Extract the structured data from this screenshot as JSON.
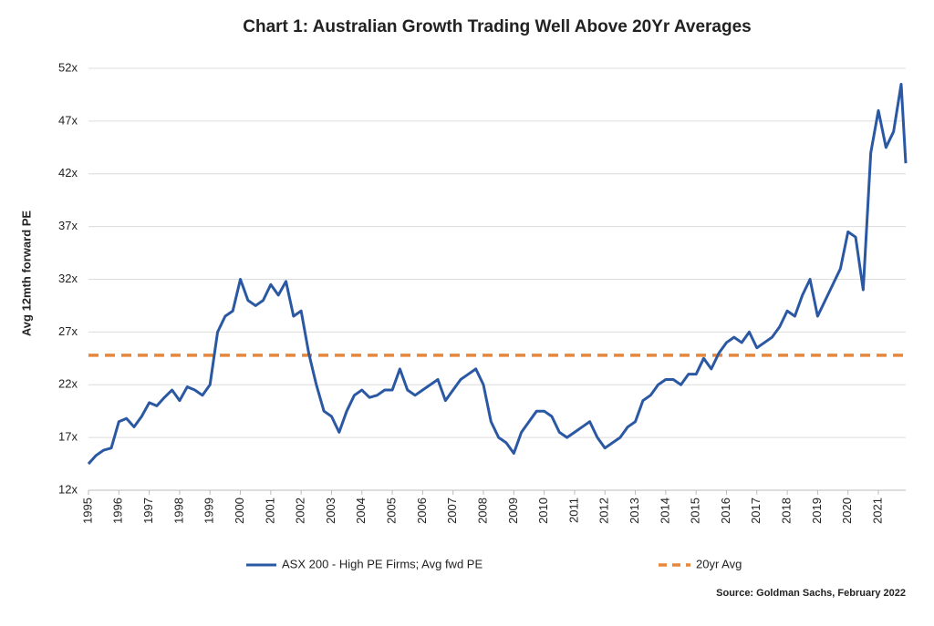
{
  "chart_data": {
    "type": "line",
    "title": "Chart 1: Australian Growth Trading Well Above 20Yr Averages",
    "y_label": "Avg 12mth forward PE",
    "source": "Source: Goldman Sachs, February 2022",
    "x": [
      1995,
      1995.25,
      1995.5,
      1995.75,
      1996,
      1996.25,
      1996.5,
      1996.75,
      1997,
      1997.25,
      1997.5,
      1997.75,
      1998,
      1998.25,
      1998.5,
      1998.75,
      1999,
      1999.25,
      1999.5,
      1999.75,
      2000,
      2000.25,
      2000.5,
      2000.75,
      2001,
      2001.25,
      2001.5,
      2001.75,
      2002,
      2002.25,
      2002.5,
      2002.75,
      2003,
      2003.25,
      2003.5,
      2003.75,
      2004,
      2004.25,
      2004.5,
      2004.75,
      2005,
      2005.25,
      2005.5,
      2005.75,
      2006,
      2006.25,
      2006.5,
      2006.75,
      2007,
      2007.25,
      2007.5,
      2007.75,
      2008,
      2008.25,
      2008.5,
      2008.75,
      2009,
      2009.25,
      2009.5,
      2009.75,
      2010,
      2010.25,
      2010.5,
      2010.75,
      2011,
      2011.25,
      2011.5,
      2011.75,
      2012,
      2012.25,
      2012.5,
      2012.75,
      2013,
      2013.25,
      2013.5,
      2013.75,
      2014,
      2014.25,
      2014.5,
      2014.75,
      2015,
      2015.25,
      2015.5,
      2015.75,
      2016,
      2016.25,
      2016.5,
      2016.75,
      2017,
      2017.25,
      2017.5,
      2017.75,
      2018,
      2018.25,
      2018.5,
      2018.75,
      2019,
      2019.25,
      2019.5,
      2019.75,
      2020,
      2020.25,
      2020.5,
      2020.75,
      2021,
      2021.25,
      2021.5,
      2021.75,
      2021.9
    ],
    "series": [
      {
        "name": "ASX 200 - High PE Firms; Avg fwd PE",
        "color": "#2b58a3",
        "values": [
          14.5,
          15.3,
          15.8,
          16.0,
          18.5,
          18.8,
          18.0,
          19.0,
          20.3,
          20.0,
          20.8,
          21.5,
          20.5,
          21.8,
          21.5,
          21.0,
          22.0,
          27.0,
          28.5,
          29.0,
          32.0,
          30.0,
          29.5,
          30.0,
          31.5,
          30.5,
          31.8,
          28.5,
          29.0,
          25.0,
          22.0,
          19.5,
          19.0,
          17.5,
          19.5,
          21.0,
          21.5,
          20.8,
          21.0,
          21.5,
          21.5,
          23.5,
          21.5,
          21.0,
          21.5,
          22.0,
          22.5,
          20.5,
          21.5,
          22.5,
          23.0,
          23.5,
          22.0,
          18.5,
          17.0,
          16.5,
          15.5,
          17.5,
          18.5,
          19.5,
          19.5,
          19.0,
          17.5,
          17.0,
          17.5,
          18.0,
          18.5,
          17.0,
          16.0,
          16.5,
          17.0,
          18.0,
          18.5,
          20.5,
          21.0,
          22.0,
          22.5,
          22.5,
          22.0,
          23.0,
          23.0,
          24.5,
          23.5,
          25.0,
          26.0,
          26.5,
          26.0,
          27.0,
          25.5,
          26.0,
          26.5,
          27.5,
          29.0,
          28.5,
          30.5,
          32.0,
          28.5,
          30.0,
          31.5,
          33.0,
          36.5,
          36.0,
          31.0,
          44.0,
          48.0,
          44.5,
          46.0,
          50.5,
          43.0
        ]
      }
    ],
    "reference_line": {
      "name": "20yr Avg",
      "value": 24.8,
      "color": "#e8873a"
    },
    "xlim": [
      1995,
      2021.9
    ],
    "xticks": [
      1995,
      1996,
      1997,
      1998,
      1999,
      2000,
      2001,
      2002,
      2003,
      2004,
      2005,
      2006,
      2007,
      2008,
      2009,
      2010,
      2011,
      2012,
      2013,
      2014,
      2015,
      2016,
      2017,
      2018,
      2019,
      2020,
      2021
    ],
    "ylim": [
      12,
      52
    ],
    "yticks": [
      {
        "value": 12,
        "label": "12x"
      },
      {
        "value": 17,
        "label": "17x"
      },
      {
        "value": 22,
        "label": "22x"
      },
      {
        "value": 27,
        "label": "27x"
      },
      {
        "value": 32,
        "label": "32x"
      },
      {
        "value": 37,
        "label": "37x"
      },
      {
        "value": 42,
        "label": "42x"
      },
      {
        "value": 47,
        "label": "47x"
      },
      {
        "value": 52,
        "label": "52x"
      }
    ],
    "grid": true
  }
}
